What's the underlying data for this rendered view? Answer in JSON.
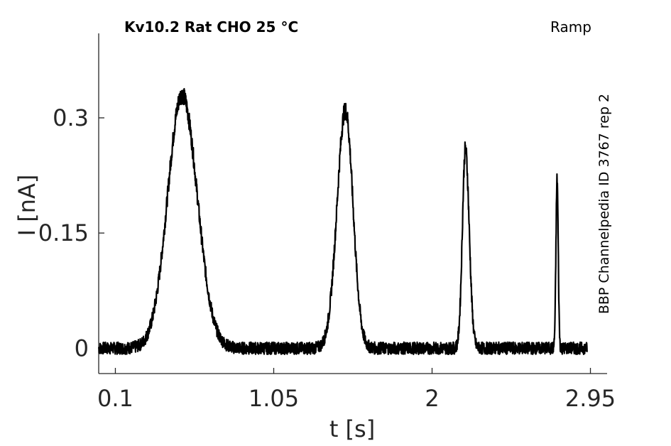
{
  "chart_data": {
    "type": "line",
    "title_left": "Kv10.2  Rat  CHO  25 °C",
    "title_right": "Ramp",
    "side_label": "BBP Channelpedia ID 3767 rep 2",
    "xlabel": "t [s]",
    "ylabel": "I [nA]",
    "xlim": [
      0.0,
      3.05
    ],
    "ylim": [
      -0.033,
      0.41
    ],
    "xticks": [
      0.1,
      1.05,
      2,
      2.95
    ],
    "xtick_labels": [
      "0.1",
      "1.05",
      "2",
      "2.95"
    ],
    "yticks": [
      0,
      0.15,
      0.3
    ],
    "ytick_labels": [
      "0",
      "0.15",
      "0.3"
    ],
    "grid": false,
    "series": [
      {
        "color": "#000000",
        "noise_amplitude": 0.008,
        "x_range": [
          0.0,
          2.93
        ],
        "peaks": [
          {
            "t": 0.5,
            "amplitude": 0.33,
            "width_left": 0.19,
            "width_right": 0.2
          },
          {
            "t": 1.48,
            "amplitude": 0.31,
            "width_left": 0.11,
            "width_right": 0.1
          },
          {
            "t": 2.2,
            "amplitude": 0.26,
            "width_left": 0.04,
            "width_right": 0.05
          },
          {
            "t": 2.75,
            "amplitude": 0.22,
            "width_left": 0.015,
            "width_right": 0.015
          }
        ]
      }
    ]
  }
}
